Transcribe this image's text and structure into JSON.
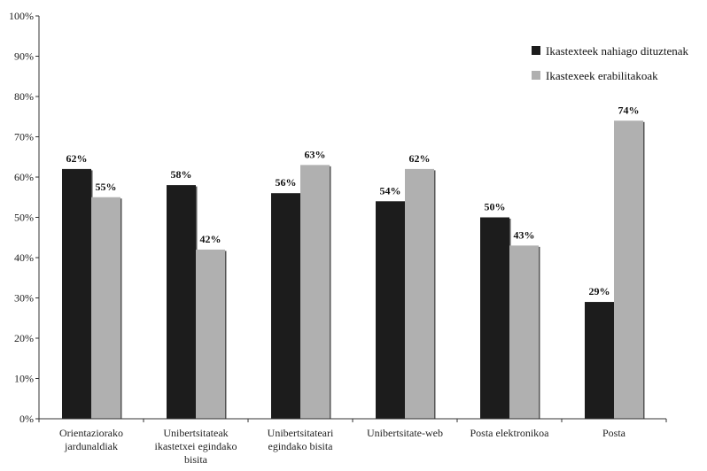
{
  "chart_data": {
    "type": "bar",
    "categories": [
      [
        "Orientaziorako",
        "jardunaldiak"
      ],
      [
        "Unibertsitateak",
        "ikastetxei egindako",
        "bisita"
      ],
      [
        "Unibertsitateari",
        "egindako bisita"
      ],
      [
        "Unibertsitate-web"
      ],
      [
        "Posta elektronikoa"
      ],
      [
        "Posta"
      ]
    ],
    "series": [
      {
        "name": "Ikastexteek nahiago dituztenak",
        "values": [
          62,
          58,
          56,
          54,
          50,
          29
        ],
        "labels": [
          "62%",
          "58%",
          "56%",
          "54%",
          "50%",
          "29%"
        ],
        "color": "#1c1c1c"
      },
      {
        "name": "Ikastexeek erabilitakoak",
        "values": [
          55,
          42,
          63,
          62,
          43,
          74
        ],
        "labels": [
          "55%",
          "42%",
          "63%",
          "62%",
          "43%",
          "74%"
        ],
        "color": "#b0b0b0"
      }
    ],
    "yticks": [
      "0%",
      "10%",
      "20%",
      "30%",
      "40%",
      "50%",
      "60%",
      "70%",
      "80%",
      "90%",
      "100%"
    ],
    "ylim": [
      0,
      100
    ],
    "grid": false,
    "legend_position": "top-right"
  }
}
